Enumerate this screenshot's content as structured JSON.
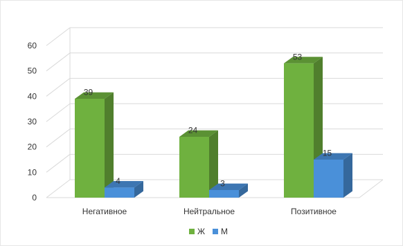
{
  "chart_data": {
    "type": "bar",
    "style": "3d-clustered-column",
    "title": "",
    "xlabel": "",
    "ylabel": "",
    "categories": [
      "Негативное",
      "Нейтральное",
      "Позитивное"
    ],
    "series": [
      {
        "name": "Ж",
        "values": [
          39,
          24,
          53
        ],
        "color": "#6fb13f"
      },
      {
        "name": "М",
        "values": [
          4,
          3,
          15
        ],
        "color": "#4a90d9"
      }
    ],
    "ylim": [
      0,
      60
    ],
    "yticks": [
      0,
      10,
      20,
      30,
      40,
      50,
      60
    ],
    "grid": true,
    "data_labels": true,
    "legend_position": "bottom"
  }
}
